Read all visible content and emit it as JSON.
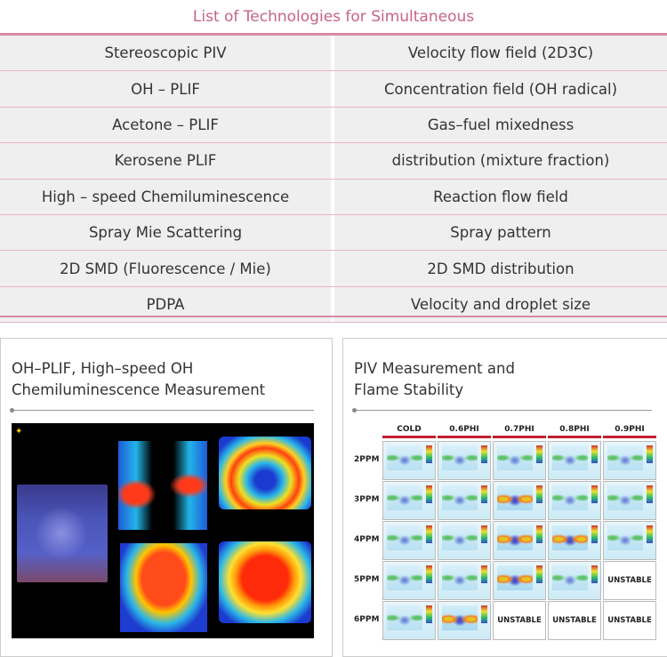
{
  "table": {
    "title": "List of Technologies for Simultaneous",
    "rows": [
      {
        "left": "Stereoscopic PIV",
        "right": "Velocity flow field (2D3C)"
      },
      {
        "left": "OH – PLIF",
        "right": "Concentration field (OH radical)"
      },
      {
        "left": "Acetone – PLIF",
        "right": "Gas–fuel mixedness"
      },
      {
        "left": "Kerosene PLIF",
        "right": "distribution (mixture fraction)"
      },
      {
        "left": "High – speed Chemiluminescence",
        "right": "Reaction flow field"
      },
      {
        "left": "Spray Mie Scattering",
        "right": "Spray pattern"
      },
      {
        "left": "2D SMD (Fluorescence / Mie)",
        "right": "2D SMD distribution"
      },
      {
        "left": "PDPA",
        "right": "Velocity and droplet size"
      }
    ]
  },
  "panel_left": {
    "title_line1": "OH–PLIF, High–speed OH",
    "title_line2": "Chemiluminescence Measurement"
  },
  "panel_right": {
    "title_line1": "PIV Measurement and",
    "title_line2": "Flame Stability",
    "columns": [
      "COLD",
      "0.6PHI",
      "0.7PHI",
      "0.8PHI",
      "0.9PHI"
    ],
    "rows": [
      {
        "label": "2PPM",
        "cells": [
          "img",
          "img",
          "img",
          "img",
          "img"
        ]
      },
      {
        "label": "3PPM",
        "cells": [
          "img",
          "img",
          "hot",
          "img",
          "img"
        ]
      },
      {
        "label": "4PPM",
        "cells": [
          "img",
          "img",
          "hot",
          "hot",
          "img"
        ]
      },
      {
        "label": "5PPM",
        "cells": [
          "img",
          "img",
          "hot",
          "img",
          "UNSTABLE"
        ]
      },
      {
        "label": "6PPM",
        "cells": [
          "img",
          "hot",
          "UNSTABLE",
          "UNSTABLE",
          "UNSTABLE"
        ]
      }
    ]
  }
}
